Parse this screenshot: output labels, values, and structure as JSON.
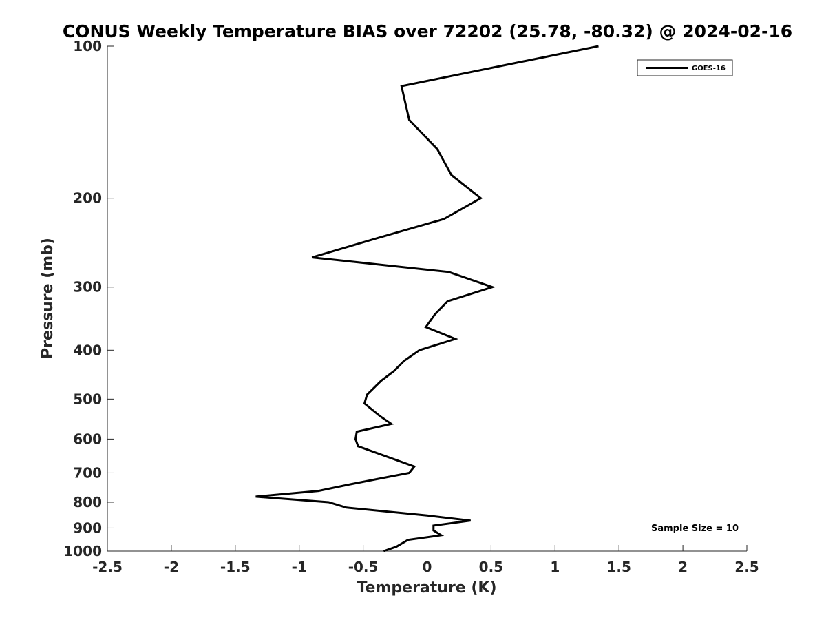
{
  "chart_data": {
    "type": "line",
    "title": "CONUS Weekly Temperature BIAS over 72202 (25.78, -80.32) @ 2024-02-16",
    "xlabel": "Temperature (K)",
    "ylabel": "Pressure (mb)",
    "xlim": [
      -2.5,
      2.5
    ],
    "ylim": [
      100,
      1000
    ],
    "y_scale": "log",
    "y_reversed": true,
    "x_ticks": [
      "-2.5",
      "-2",
      "-1.5",
      "-1",
      "-0.5",
      "0",
      "0.5",
      "1",
      "1.5",
      "2",
      "2.5"
    ],
    "y_ticks": [
      "100",
      "200",
      "300",
      "400",
      "500",
      "600",
      "700",
      "800",
      "900",
      "1000"
    ],
    "grid": false,
    "legend_position": "top-right",
    "series": [
      {
        "name": "GOES-16",
        "color": "#000000",
        "x": [
          1.34,
          -0.2,
          -0.14,
          0.08,
          0.19,
          0.42,
          0.13,
          -0.39,
          -0.9,
          0.17,
          0.51,
          0.16,
          0.06,
          -0.01,
          0.22,
          -0.06,
          -0.18,
          -0.26,
          -0.36,
          -0.47,
          -0.49,
          -0.37,
          -0.28,
          -0.55,
          -0.56,
          -0.54,
          -0.1,
          -0.14,
          -0.39,
          -0.63,
          -0.85,
          -1.34,
          -0.77,
          -0.63,
          0.0,
          0.34,
          0.05,
          0.05,
          0.11,
          -0.15,
          -0.24,
          -0.34
        ],
        "y": [
          100,
          120,
          140,
          160,
          180,
          200,
          220,
          240,
          262,
          280,
          300,
          320,
          340,
          360,
          380,
          400,
          420,
          440,
          460,
          490,
          510,
          540,
          560,
          580,
          600,
          620,
          680,
          700,
          720,
          740,
          760,
          780,
          800,
          820,
          850,
          870,
          890,
          910,
          930,
          950,
          980,
          1000
        ]
      }
    ],
    "annotation": "Sample Size = 10"
  }
}
